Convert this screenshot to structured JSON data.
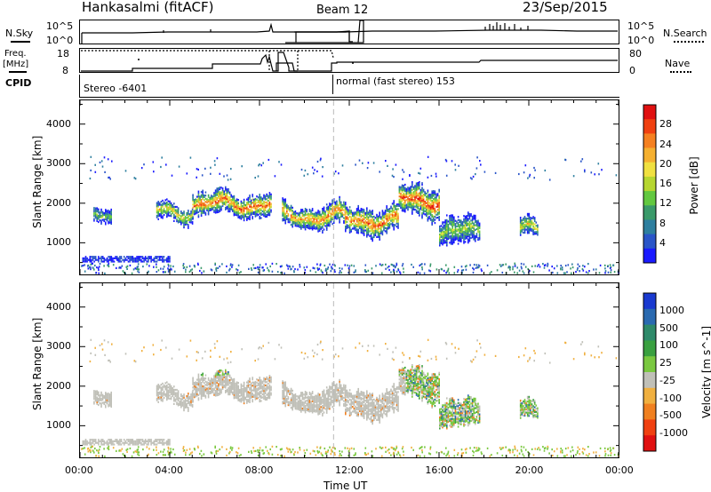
{
  "header": {
    "site_title": "Hankasalmi (fitACF)",
    "beam": "Beam 12",
    "date": "23/Sep/2015"
  },
  "top_panel": {
    "nsky_label": "N.Sky",
    "nsearch_label": "N.Search",
    "noise_ticks": [
      "10^5",
      "10^0"
    ],
    "freq_label": "Freq.",
    "freq_unit": "[MHz]",
    "freq_ticks": [
      "18",
      "8"
    ],
    "nave_label": "Nave",
    "nave_ticks": [
      "80",
      "0"
    ],
    "cpid_label": "CPID",
    "cpid_segments": [
      "Stereo -6401",
      "normal (fast stereo) 153"
    ]
  },
  "chart_data": [
    {
      "type": "heatmap",
      "title": "",
      "xlabel": "Time UT",
      "ylabel": "Slant Range [km]",
      "x_ticks": [
        "00:00",
        "04:00",
        "08:00",
        "12:00",
        "16:00",
        "20:00",
        "00:00"
      ],
      "y_ticks": [
        1000,
        2000,
        3000,
        4000
      ],
      "ylim": [
        200,
        4600
      ],
      "colorbar": {
        "label": "Power [dB]",
        "ticks": [
          4,
          8,
          12,
          16,
          20,
          24,
          28
        ],
        "colors": [
          "#1a1aff",
          "#2a55c8",
          "#2e7f9f",
          "#3a9a6a",
          "#62c840",
          "#b6d630",
          "#f0e040",
          "#f5b030",
          "#f58020",
          "#f04010",
          "#e01010"
        ]
      },
      "scatter_bands": [
        {
          "t_start": 0.6,
          "t_end": 1.4,
          "range_km": 1650,
          "spread_km": 150,
          "level": 0.4
        },
        {
          "t_start": 3.4,
          "t_end": 5.0,
          "range_km": 1800,
          "spread_km": 200,
          "level": 0.6
        },
        {
          "t_start": 5.0,
          "t_end": 8.5,
          "range_km": 2000,
          "spread_km": 250,
          "level": 0.85
        },
        {
          "t_start": 9.0,
          "t_end": 11.8,
          "range_km": 1700,
          "spread_km": 250,
          "level": 0.8
        },
        {
          "t_start": 11.8,
          "t_end": 14.2,
          "range_km": 1600,
          "spread_km": 300,
          "level": 0.85
        },
        {
          "t_start": 14.2,
          "t_end": 16.0,
          "range_km": 2100,
          "spread_km": 350,
          "level": 0.9
        },
        {
          "t_start": 16.0,
          "t_end": 17.8,
          "range_km": 1300,
          "spread_km": 300,
          "level": 0.5
        },
        {
          "t_start": 19.6,
          "t_end": 20.4,
          "range_km": 1350,
          "spread_km": 200,
          "level": 0.6
        }
      ]
    },
    {
      "type": "heatmap",
      "title": "",
      "xlabel": "Time UT",
      "ylabel": "Slant Range [km]",
      "x_ticks": [
        "00:00",
        "04:00",
        "08:00",
        "12:00",
        "16:00",
        "20:00",
        "00:00"
      ],
      "y_ticks": [
        1000,
        2000,
        3000,
        4000
      ],
      "ylim": [
        200,
        4600
      ],
      "colorbar": {
        "label": "Velocity [m s^-1]",
        "ticks": [
          "1000",
          "500",
          "100",
          "25",
          "-25",
          "-100",
          "-500",
          "-1000"
        ],
        "colors": [
          "#1a3ad0",
          "#2a6ab0",
          "#2e8a6a",
          "#3aa040",
          "#7ac840",
          "#c0c0b8",
          "#f0b040",
          "#f08020",
          "#f04010",
          "#e01010"
        ]
      },
      "ground_scatter_color": "#c0c0b8"
    }
  ]
}
